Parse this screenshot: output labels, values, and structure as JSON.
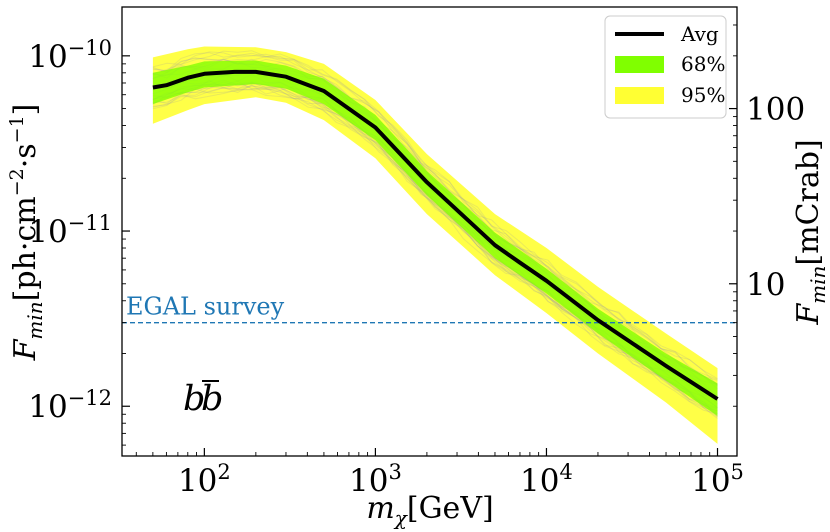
{
  "chart_data": {
    "type": "line",
    "title": "",
    "xlabel_main": "m",
    "xlabel_sub": "χ",
    "xlabel_unit": "[GeV]",
    "ylabel_main": "F",
    "ylabel_sub": "min",
    "ylabel_unit_prefix": "[ph·cm",
    "ylabel_unit_exp1": "−2",
    "ylabel_unit_mid": "·s",
    "ylabel_unit_exp2": "−1",
    "ylabel_unit_suffix": "]",
    "y2label_main": "F",
    "y2label_sub": "min",
    "y2label_unit": "[mCrab]",
    "xscale": "log",
    "yscale": "log",
    "xlim": [
      33,
      130000
    ],
    "ylim": [
      5.2e-13,
      1.9e-10
    ],
    "x_ticks": [
      {
        "value": 100,
        "base": "10",
        "exp": "2"
      },
      {
        "value": 1000,
        "base": "10",
        "exp": "3"
      },
      {
        "value": 10000,
        "base": "10",
        "exp": "4"
      },
      {
        "value": 100000,
        "base": "10",
        "exp": "5"
      }
    ],
    "y_ticks": [
      {
        "value": 1e-10,
        "base": "10",
        "exp": "−10"
      },
      {
        "value": 1e-11,
        "base": "10",
        "exp": "−11"
      },
      {
        "value": 1e-12,
        "base": "10",
        "exp": "−12"
      }
    ],
    "y2_ticks": [
      {
        "value": 5e-11,
        "label": "100"
      },
      {
        "value": 5e-12,
        "label": "10"
      }
    ],
    "channel_label": {
      "base": "b",
      "bar": "b"
    },
    "reference_line": {
      "label": "EGAL survey",
      "value": 3e-12,
      "color": "#1f77b4"
    },
    "series": [
      {
        "name": "Avg",
        "color": "#000000",
        "x": [
          50,
          60,
          80,
          100,
          150,
          200,
          300,
          500,
          1000,
          2000,
          5000,
          7000,
          10000,
          20000,
          50000,
          100000
        ],
        "values": [
          6.6e-11,
          6.8e-11,
          7.5e-11,
          7.9e-11,
          8.1e-11,
          8.1e-11,
          7.6e-11,
          6.3e-11,
          3.9e-11,
          1.9e-11,
          8.3e-12,
          6.6e-12,
          5.2e-12,
          3.1e-12,
          1.7e-12,
          1.1e-12
        ]
      },
      {
        "name": "68%",
        "color": "#80ff00",
        "x": [
          50,
          80,
          100,
          200,
          300,
          500,
          1000,
          2000,
          5000,
          10000,
          20000,
          50000,
          100000
        ],
        "lower": [
          5.3e-11,
          6.2e-11,
          6.6e-11,
          6.9e-11,
          6.5e-11,
          5.3e-11,
          3.3e-11,
          1.6e-11,
          7e-12,
          4.4e-12,
          2.6e-12,
          1.4e-12,
          8.8e-13
        ],
        "upper": [
          8e-11,
          8.8e-11,
          9.3e-11,
          9.4e-11,
          8.8e-11,
          7.4e-11,
          4.6e-11,
          2.2e-11,
          9.8e-12,
          6.1e-12,
          3.6e-12,
          2e-12,
          1.35e-12
        ]
      },
      {
        "name": "95%",
        "color": "#ffff33",
        "x": [
          50,
          80,
          100,
          200,
          300,
          500,
          1000,
          2000,
          5000,
          10000,
          20000,
          50000,
          100000
        ],
        "lower": [
          4.1e-11,
          4.9e-11,
          5.3e-11,
          5.8e-11,
          5.4e-11,
          4.3e-11,
          2.6e-11,
          1.25e-11,
          5.6e-12,
          3.4e-12,
          2e-12,
          1.05e-12,
          6.1e-13
        ],
        "upper": [
          9.8e-11,
          1.09e-10,
          1.13e-10,
          1.12e-10,
          1.05e-10,
          9e-11,
          5.6e-11,
          2.75e-11,
          1.25e-11,
          8e-12,
          4.8e-12,
          2.6e-12,
          1.65e-12
        ]
      }
    ],
    "legend": {
      "placement": "top-right",
      "entries": [
        {
          "label": "Avg",
          "kind": "line",
          "color": "#000000"
        },
        {
          "label": "68%",
          "kind": "patch",
          "color": "#80ff00"
        },
        {
          "label": "95%",
          "kind": "patch",
          "color": "#ffff33"
        }
      ]
    },
    "grid": false
  }
}
